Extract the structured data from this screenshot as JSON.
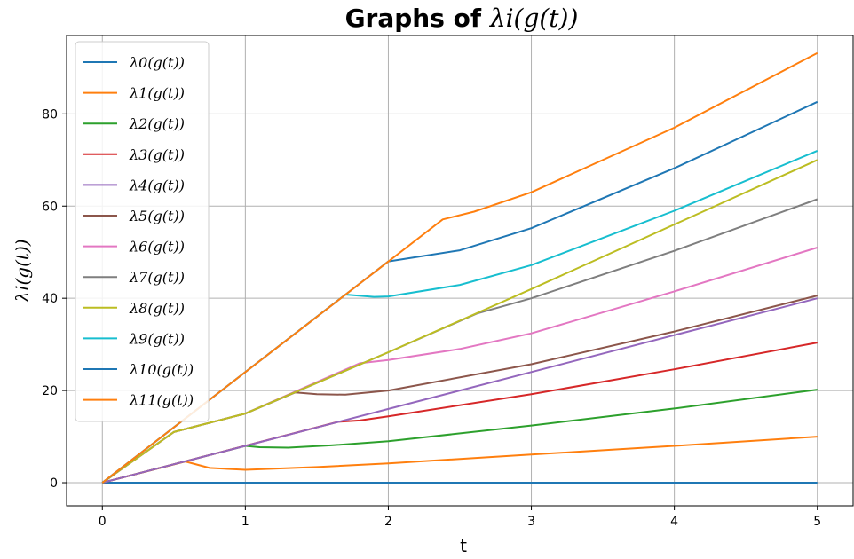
{
  "chart_data": {
    "type": "line",
    "title": "Graphs of λ_i(g(t))",
    "title_prefix": "Graphs of ",
    "title_math": "λi(g(t))",
    "xlabel": "t",
    "ylabel": "λi(g(t))",
    "xlim": [
      -0.25,
      5.25
    ],
    "ylim": [
      -5,
      97
    ],
    "xticks": [
      0,
      1,
      2,
      3,
      4,
      5
    ],
    "yticks": [
      0,
      20,
      40,
      60,
      80
    ],
    "grid": true,
    "legend_position": "top-left",
    "series": [
      {
        "name": "λ0(g(t))",
        "color": "#1f77b4",
        "x": [
          0,
          5
        ],
        "y": [
          0,
          0
        ]
      },
      {
        "name": "λ1(g(t))",
        "color": "#ff7f0e",
        "x": [
          0,
          0.58,
          0.75,
          1.0,
          1.5,
          2.0,
          3.0,
          4.0,
          5.0
        ],
        "y": [
          0,
          4.6,
          3.2,
          2.8,
          3.4,
          4.2,
          6.1,
          8.0,
          10.0
        ]
      },
      {
        "name": "λ2(g(t))",
        "color": "#2ca02c",
        "x": [
          0,
          1.0,
          1.1,
          1.3,
          1.6,
          2.0,
          3.0,
          4.0,
          5.0
        ],
        "y": [
          0,
          8.0,
          7.7,
          7.6,
          8.1,
          9.0,
          12.4,
          16.1,
          20.2
        ]
      },
      {
        "name": "λ3(g(t))",
        "color": "#d62728",
        "x": [
          0,
          1.65,
          1.8,
          2.0,
          3.0,
          4.0,
          5.0
        ],
        "y": [
          0,
          13.2,
          13.5,
          14.4,
          19.2,
          24.6,
          30.4
        ]
      },
      {
        "name": "λ4(g(t))",
        "color": "#9467bd",
        "x": [
          0,
          1.0,
          2.0,
          3.0,
          4.0,
          5.0
        ],
        "y": [
          0,
          8.0,
          16.0,
          24.0,
          32.0,
          40.0
        ]
      },
      {
        "name": "λ5(g(t))",
        "color": "#8c564b",
        "x": [
          0,
          0.5,
          1.0,
          1.35,
          1.5,
          1.7,
          2.0,
          3.0,
          4.0,
          5.0
        ],
        "y": [
          0,
          11.0,
          15.0,
          19.6,
          19.2,
          19.1,
          20.0,
          25.7,
          32.8,
          40.6
        ]
      },
      {
        "name": "λ6(g(t))",
        "color": "#e377c2",
        "x": [
          0,
          0.5,
          1.0,
          1.8,
          2.0,
          2.5,
          3.0,
          4.0,
          5.0
        ],
        "y": [
          0,
          11.0,
          15.0,
          25.9,
          26.6,
          29.0,
          32.4,
          41.5,
          51.0
        ]
      },
      {
        "name": "λ7(g(t))",
        "color": "#7f7f7f",
        "x": [
          0,
          0.5,
          1.0,
          2.0,
          2.62,
          3.0,
          4.0,
          5.0
        ],
        "y": [
          0,
          11.0,
          15.0,
          28.3,
          36.7,
          40.0,
          50.3,
          61.5
        ]
      },
      {
        "name": "λ8(g(t))",
        "color": "#bcbd22",
        "x": [
          0,
          0.5,
          1.0,
          2.0,
          3.0,
          4.0,
          5.0
        ],
        "y": [
          0,
          11.0,
          15.0,
          28.3,
          42.0,
          56.0,
          70.0
        ]
      },
      {
        "name": "λ9(g(t))",
        "color": "#17becf",
        "x": [
          0,
          1.7,
          1.9,
          2.0,
          2.5,
          3.0,
          4.0,
          5.0
        ],
        "y": [
          0,
          40.8,
          40.3,
          40.4,
          42.9,
          47.2,
          59.0,
          72.0
        ]
      },
      {
        "name": "λ10(g(t))",
        "color": "#1f77b4",
        "x": [
          0,
          2.0,
          2.5,
          3.0,
          4.0,
          5.0
        ],
        "y": [
          0,
          48.0,
          50.4,
          55.2,
          68.2,
          82.6
        ]
      },
      {
        "name": "λ11(g(t))",
        "color": "#ff7f0e",
        "x": [
          0,
          2.38,
          2.6,
          3.0,
          4.0,
          5.0
        ],
        "y": [
          0,
          57.1,
          58.8,
          63.0,
          77.0,
          93.2
        ]
      }
    ]
  }
}
